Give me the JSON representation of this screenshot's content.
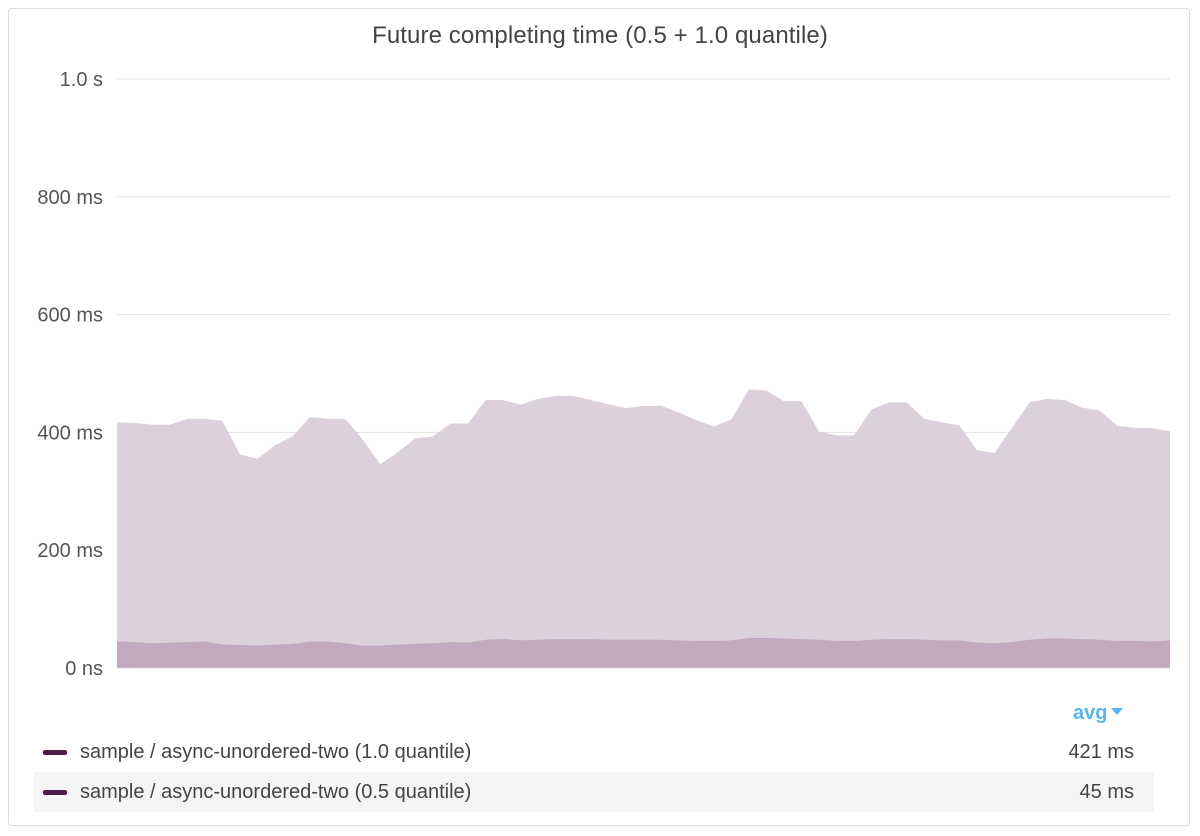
{
  "panel": {
    "title": "Future completing time (0.5 + 1.0 quantile)",
    "aggregation_label": "avg"
  },
  "legend": [
    {
      "label": "sample / async-unordered-two (1.0 quantile)",
      "value": "421 ms",
      "color": "#4a1c47"
    },
    {
      "label": "sample / async-unordered-two (0.5 quantile)",
      "value": "45 ms",
      "color": "#4a1c47"
    }
  ],
  "chart_data": {
    "type": "area",
    "title": "Future completing time (0.5 + 1.0 quantile)",
    "ylim": [
      0,
      1000
    ],
    "yunit": "ms",
    "yticks": [
      {
        "value": 0,
        "label": "0 ns"
      },
      {
        "value": 200,
        "label": "200 ms"
      },
      {
        "value": 400,
        "label": "400 ms"
      },
      {
        "value": 600,
        "label": "600 ms"
      },
      {
        "value": 800,
        "label": "800 ms"
      },
      {
        "value": 1000,
        "label": "1.0 s"
      }
    ],
    "grid": true,
    "legend_position": "bottom",
    "series": [
      {
        "name": "sample / async-unordered-two (1.0 quantile)",
        "color": "#dcd0da",
        "values": [
          417,
          416,
          413,
          413,
          423,
          423,
          420,
          363,
          355,
          378,
          393,
          426,
          423,
          423,
          388,
          346,
          366,
          390,
          393,
          415,
          415,
          455,
          455,
          447,
          457,
          462,
          462,
          455,
          448,
          441,
          445,
          445,
          434,
          421,
          410,
          422,
          473,
          471,
          453,
          453,
          401,
          395,
          395,
          439,
          451,
          451,
          423,
          417,
          412,
          370,
          365,
          408,
          451,
          457,
          455,
          442,
          437,
          411,
          408,
          407,
          402
        ]
      },
      {
        "name": "sample / async-unordered-two (0.5 quantile)",
        "color": "#c2a9c0",
        "values": [
          45,
          44,
          42,
          43,
          44,
          45,
          40,
          39,
          38,
          40,
          41,
          45,
          45,
          42,
          38,
          38,
          40,
          41,
          42,
          44,
          43,
          48,
          49,
          47,
          48,
          49,
          49,
          49,
          48,
          48,
          48,
          48,
          47,
          46,
          46,
          47,
          51,
          51,
          50,
          49,
          48,
          46,
          46,
          48,
          49,
          49,
          48,
          47,
          47,
          43,
          42,
          44,
          48,
          50,
          50,
          49,
          48,
          46,
          46,
          45,
          47
        ]
      }
    ]
  }
}
